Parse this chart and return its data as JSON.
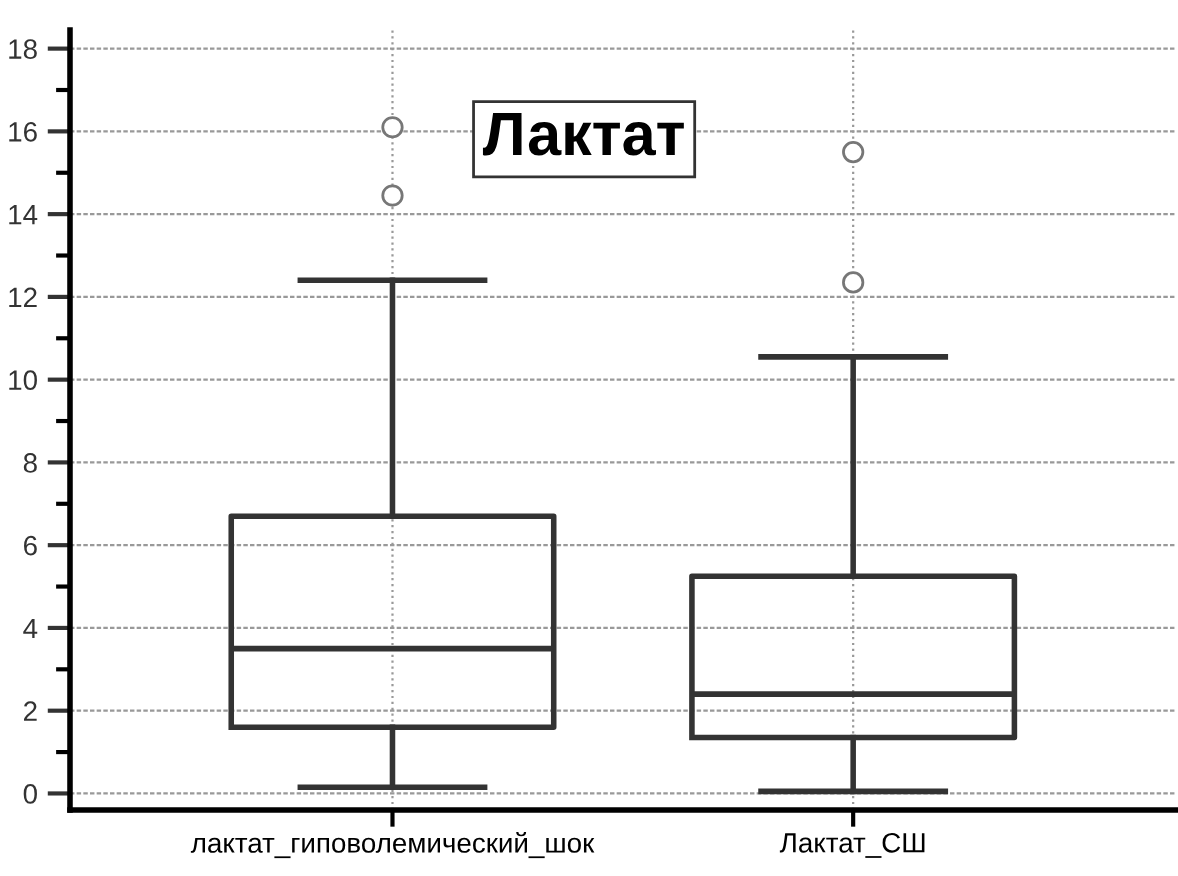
{
  "chart_data": {
    "type": "box",
    "title": "Лактат",
    "categories": [
      "лактат_гиповолемический_шок",
      "Лактат_СШ"
    ],
    "boxes": [
      {
        "low": 0.15,
        "q1": 1.6,
        "median": 3.5,
        "q3": 6.7,
        "high": 12.4,
        "outliers": [
          16.1,
          14.45
        ]
      },
      {
        "low": 0.05,
        "q1": 1.35,
        "median": 2.4,
        "q3": 5.25,
        "high": 10.55,
        "outliers": [
          15.5,
          12.35
        ]
      }
    ],
    "ylim": [
      -0.4,
      18.45
    ],
    "yticks": [
      0,
      {
        "value": 1,
        "label": null
      },
      2,
      {
        "value": 3,
        "label": null
      },
      4,
      {
        "value": 5,
        "label": null
      },
      6,
      {
        "value": 7,
        "label": null
      },
      8,
      {
        "value": 9,
        "label": null
      },
      10,
      {
        "value": 11,
        "label": null
      },
      12,
      {
        "value": 13,
        "label": null
      },
      14,
      {
        "value": 15,
        "label": null
      },
      16,
      {
        "value": 17,
        "label": null
      },
      18
    ],
    "grid": true
  }
}
